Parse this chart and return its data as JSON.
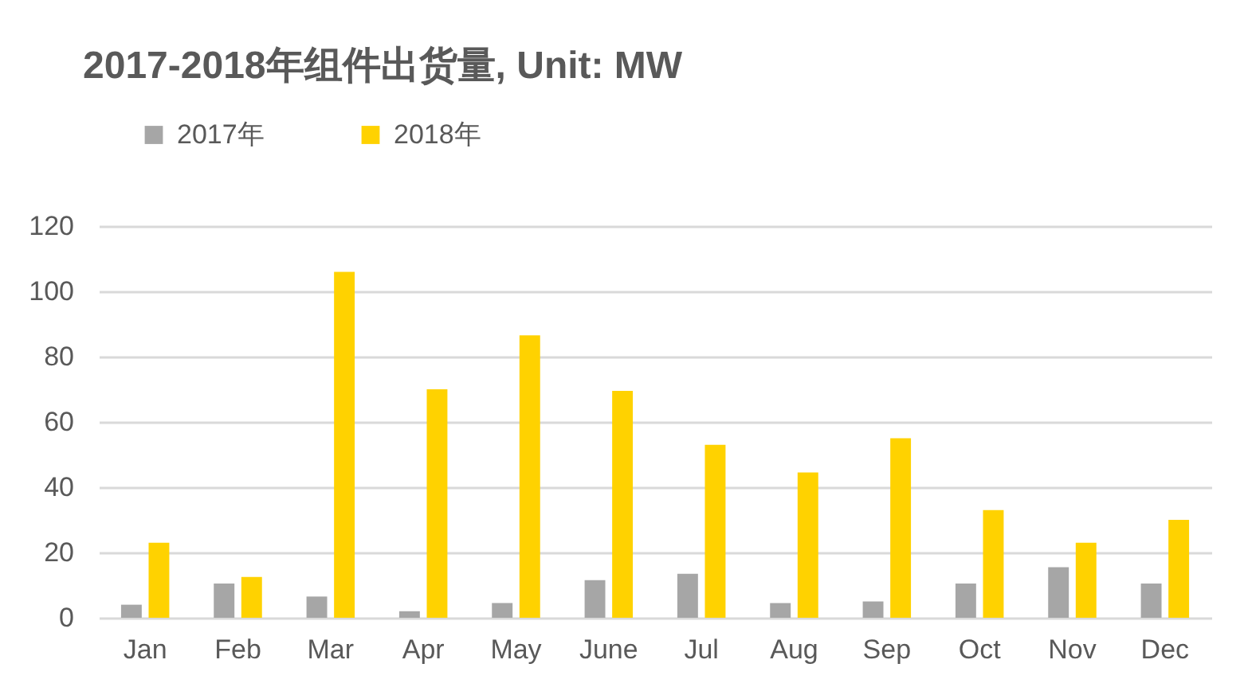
{
  "chart_data": {
    "type": "bar",
    "title": "2017-2018年组件出货量, Unit: MW",
    "categories": [
      "Jan",
      "Feb",
      "Mar",
      "Apr",
      "May",
      "June",
      "Jul",
      "Aug",
      "Sep",
      "Oct",
      "Nov",
      "Dec"
    ],
    "series": [
      {
        "name": "2017年",
        "color": "#a6a6a6",
        "values": [
          4,
          10.5,
          6.5,
          2,
          4.5,
          11.5,
          13.5,
          4.5,
          5,
          10.5,
          15.5,
          10.5
        ]
      },
      {
        "name": "2018年",
        "color": "#ffd200",
        "values": [
          23,
          12.5,
          106,
          70,
          86.5,
          69.5,
          53,
          44.5,
          55,
          33,
          23,
          30
        ]
      }
    ],
    "ylim": [
      0,
      120
    ],
    "yticks": [
      0,
      20,
      40,
      60,
      80,
      100,
      120
    ],
    "grid": "y",
    "legend": "top left"
  }
}
